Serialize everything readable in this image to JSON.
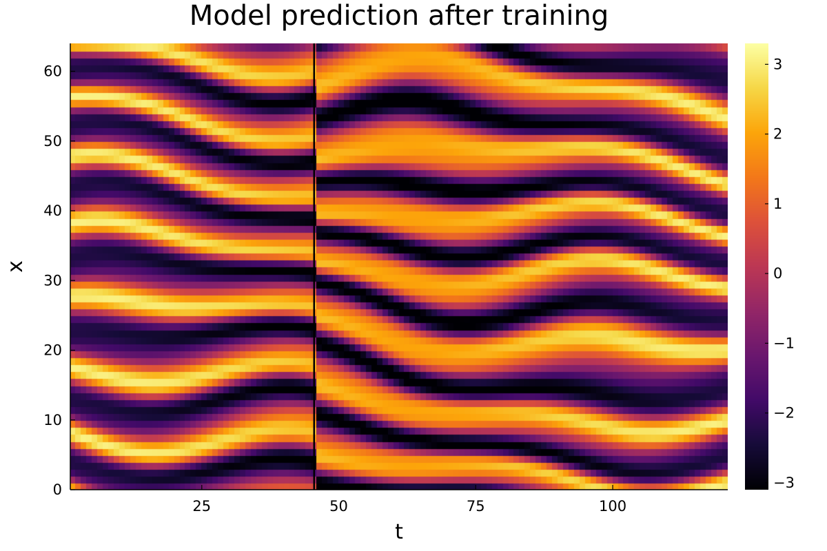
{
  "chart_data": {
    "type": "heatmap",
    "title": "Model prediction after training",
    "xlabel": "t",
    "ylabel": "x",
    "xlim": [
      1,
      121
    ],
    "ylim": [
      0,
      64
    ],
    "xticks": [
      25,
      50,
      75,
      100
    ],
    "yticks": [
      0,
      10,
      20,
      30,
      40,
      50,
      60
    ],
    "colorbar": {
      "colormap": "inferno",
      "range": [
        -3.1,
        3.3
      ],
      "ticks": [
        -3,
        -2,
        -1,
        0,
        1,
        2,
        3
      ],
      "tick_labels": [
        "−3",
        "−2",
        "−1",
        "0",
        "1",
        "2",
        "3"
      ]
    },
    "annotations": [
      {
        "type": "vertical-line",
        "x": 45.5,
        "color": "#000000"
      }
    ],
    "field": {
      "description": "Kuramoto–Sivashinsky-like travelling stripe pattern; ridges (values ≈ 2–3) drift upward/downward over t, with a discontinuity at the vertical line",
      "value_range": [
        -3.1,
        3.3
      ]
    },
    "grid": false,
    "colors": {
      "line": "#000000",
      "frame": "#000000"
    }
  }
}
